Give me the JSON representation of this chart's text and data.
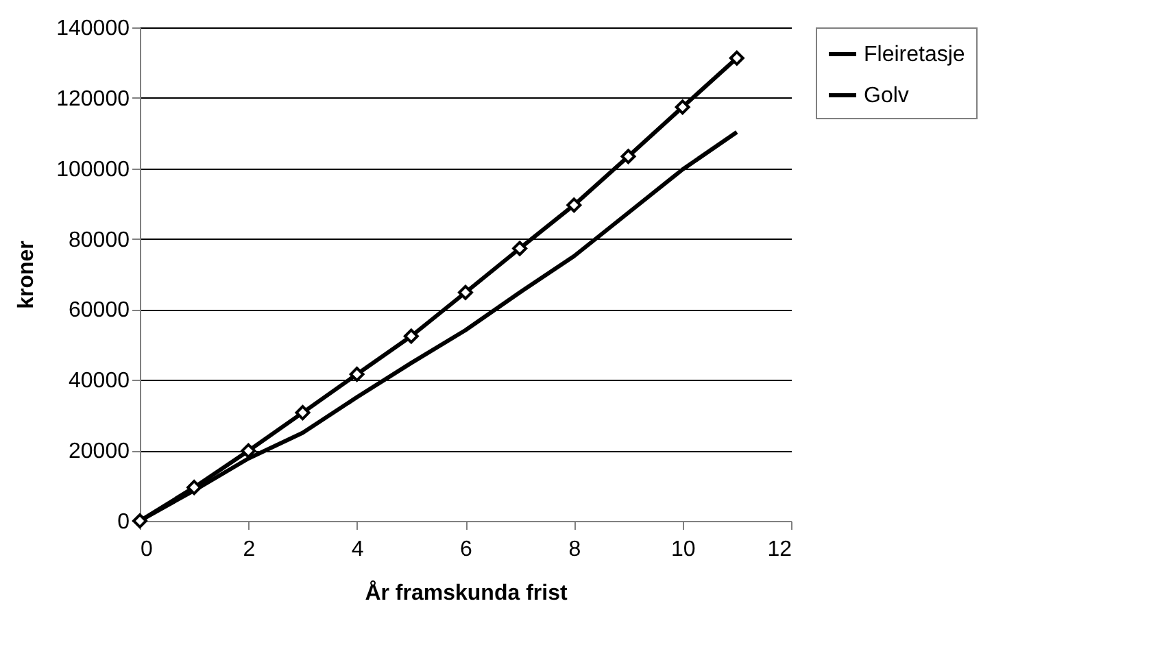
{
  "chart_data": {
    "type": "line",
    "xlabel": "År framskunda frist",
    "ylabel": "kroner",
    "x": [
      0,
      1,
      2,
      3,
      4,
      5,
      6,
      7,
      8,
      9,
      10,
      11
    ],
    "series": [
      {
        "name": "Fleiretasje",
        "color": "#000000",
        "marker": "none",
        "values": [
          0,
          8650,
          17700,
          25000,
          35100,
          44800,
          54100,
          64800,
          75100,
          87400,
          99700,
          110300
        ]
      },
      {
        "name": "Golv",
        "color": "#000000",
        "marker": "diamond",
        "values": [
          0,
          9500,
          19900,
          30700,
          41600,
          52400,
          64800,
          77300,
          89600,
          103400,
          117400,
          131300
        ]
      }
    ],
    "xlim": [
      0,
      12
    ],
    "xticks": [
      0,
      2,
      4,
      6,
      8,
      10,
      12
    ],
    "ylim": [
      0,
      140000
    ],
    "yticks": [
      0,
      20000,
      40000,
      60000,
      80000,
      100000,
      120000,
      140000
    ],
    "grid": "y",
    "legend": "right"
  }
}
